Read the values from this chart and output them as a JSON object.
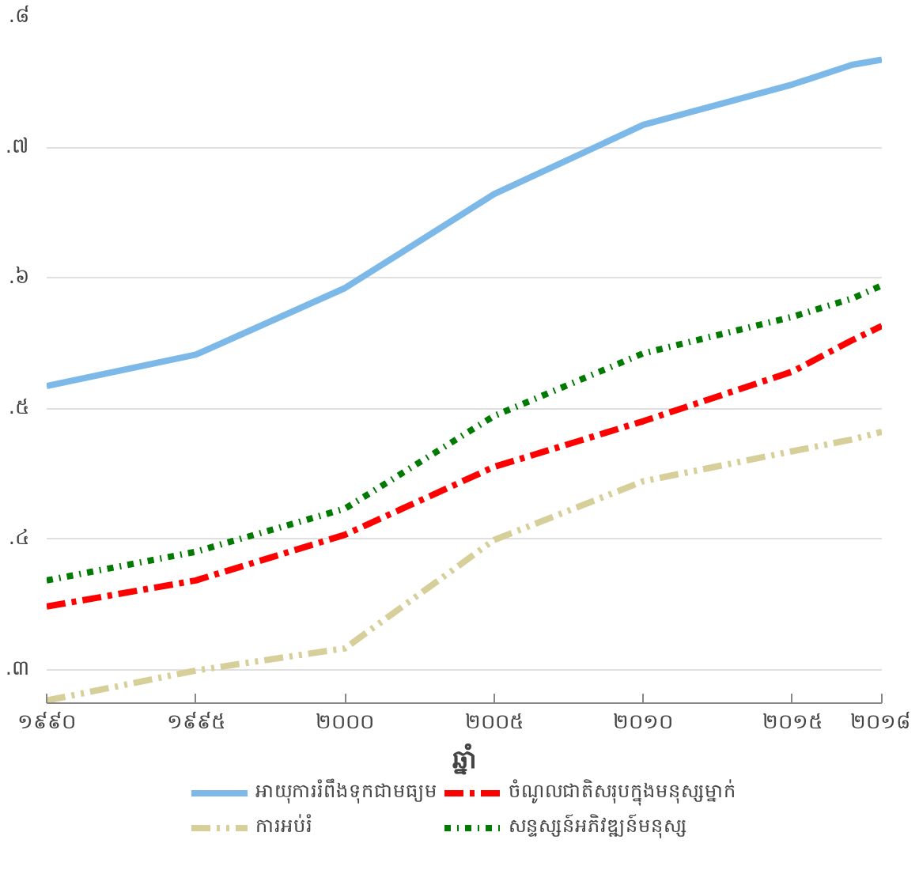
{
  "chart_data": {
    "type": "line",
    "xlabel": "ឆ្នាំ",
    "x": [
      1990,
      1995,
      2000,
      2005,
      2010,
      2015,
      2017,
      2018
    ],
    "xlim": [
      1990,
      2018
    ],
    "xticks": [
      {
        "value": 1990,
        "label": "១៩៩០"
      },
      {
        "value": 1995,
        "label": "១៩៩៥"
      },
      {
        "value": 2000,
        "label": "២០០០"
      },
      {
        "value": 2005,
        "label": "២០០៥"
      },
      {
        "value": 2010,
        "label": "២០១០"
      },
      {
        "value": 2015,
        "label": "២០១៥"
      },
      {
        "value": 2018,
        "label": "២០១៨"
      }
    ],
    "ylim": [
      0.274,
      0.8
    ],
    "yticks": [
      {
        "value": 0.3,
        "label": ".៣"
      },
      {
        "value": 0.4,
        "label": ".៤"
      },
      {
        "value": 0.5,
        "label": ".៥"
      },
      {
        "value": 0.6,
        "label": ".៦"
      },
      {
        "value": 0.7,
        "label": ".៧"
      },
      {
        "value": 0.8,
        "label": ".៨"
      }
    ],
    "grid": "y",
    "legend": "bottom",
    "series": [
      {
        "name": "អាយុការរំពឹងទុកជាមធ្យម",
        "color": "#7cb9e8",
        "line_style": "solid",
        "values": [
          0.517,
          0.541,
          0.592,
          0.664,
          0.717,
          0.748,
          0.763,
          0.767
        ]
      },
      {
        "name": "ការអប់រំ",
        "color": "#d6cf9a",
        "line_style": "dashed",
        "values": [
          0.276,
          0.299,
          0.316,
          0.399,
          0.444,
          0.467,
          0.476,
          0.482
        ]
      },
      {
        "name": "ចំណូលជាតិសរុបក្នុងមនុស្សម្នាក់",
        "color": "#ff0000",
        "line_style": "dashdot",
        "values": [
          0.348,
          0.368,
          0.403,
          0.455,
          0.49,
          0.528,
          0.552,
          0.563
        ]
      },
      {
        "name": "សន្ទស្សន៍អភិវឌ្ឍន៍មនុស្ស",
        "color": "#007a00",
        "line_style": "dotted",
        "values": [
          0.368,
          0.39,
          0.423,
          0.494,
          0.542,
          0.57,
          0.584,
          0.594
        ]
      }
    ]
  }
}
